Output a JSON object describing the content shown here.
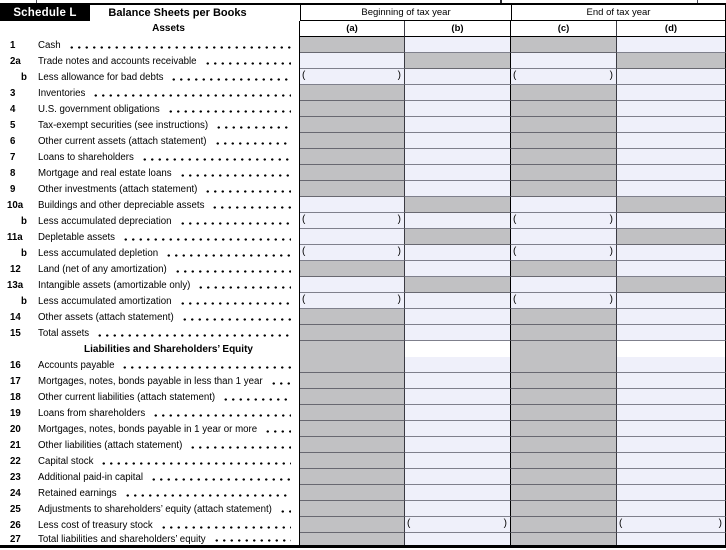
{
  "header": {
    "schedule_label": "Schedule L",
    "title": "Balance Sheets per Books",
    "column_groups": [
      "Beginning of tax year",
      "End of tax year"
    ],
    "column_letters": [
      "(a)",
      "(b)",
      "(c)",
      "(d)"
    ],
    "assets_section_title": "Assets"
  },
  "paren_open": "(",
  "paren_close": ")",
  "colors": {
    "shaded_cell": "#c1c1c3",
    "open_cell": "#eff0fa",
    "header_bg": "#ffffff",
    "schedule_box_bg": "#000000",
    "schedule_box_text": "#ffffff",
    "rule": "#000000"
  },
  "table": {
    "rows": [
      {
        "num": "1",
        "label": "Cash",
        "cells": [
          "shaded",
          "open",
          "shaded",
          "open"
        ]
      },
      {
        "num": "2a",
        "label": "Trade notes and accounts receivable",
        "cells": [
          "open",
          "shaded",
          "open",
          "shaded"
        ]
      },
      {
        "num": "b",
        "label": "Less allowance for bad debts",
        "cells": [
          "paren",
          "open",
          "paren",
          "open"
        ]
      },
      {
        "num": "3",
        "label": "Inventories",
        "cells": [
          "shaded",
          "open",
          "shaded",
          "open"
        ]
      },
      {
        "num": "4",
        "label": "U.S. government obligations",
        "cells": [
          "shaded",
          "open",
          "shaded",
          "open"
        ]
      },
      {
        "num": "5",
        "label": "Tax-exempt securities (see instructions)",
        "cells": [
          "shaded",
          "open",
          "shaded",
          "open"
        ]
      },
      {
        "num": "6",
        "label": "Other current assets (attach statement)",
        "cells": [
          "shaded",
          "open",
          "shaded",
          "open"
        ]
      },
      {
        "num": "7",
        "label": "Loans to shareholders",
        "cells": [
          "shaded",
          "open",
          "shaded",
          "open"
        ]
      },
      {
        "num": "8",
        "label": "Mortgage and real estate loans",
        "cells": [
          "shaded",
          "open",
          "shaded",
          "open"
        ]
      },
      {
        "num": "9",
        "label": "Other investments (attach statement)",
        "cells": [
          "shaded",
          "open",
          "shaded",
          "open"
        ]
      },
      {
        "num": "10a",
        "label": "Buildings and other depreciable assets",
        "cells": [
          "open",
          "shaded",
          "open",
          "shaded"
        ]
      },
      {
        "num": "b",
        "label": "Less accumulated depreciation",
        "cells": [
          "paren",
          "open",
          "paren",
          "open"
        ]
      },
      {
        "num": "11a",
        "label": "Depletable assets",
        "cells": [
          "open",
          "shaded",
          "open",
          "shaded"
        ]
      },
      {
        "num": "b",
        "label": "Less accumulated depletion",
        "cells": [
          "paren",
          "open",
          "paren",
          "open"
        ]
      },
      {
        "num": "12",
        "label": "Land (net of any amortization)",
        "cells": [
          "shaded",
          "open",
          "shaded",
          "open"
        ]
      },
      {
        "num": "13a",
        "label": "Intangible assets (amortizable only)",
        "cells": [
          "open",
          "shaded",
          "open",
          "shaded"
        ]
      },
      {
        "num": "b",
        "label": "Less accumulated amortization",
        "cells": [
          "paren",
          "open",
          "paren",
          "open"
        ]
      },
      {
        "num": "14",
        "label": "Other assets (attach statement)",
        "cells": [
          "shaded",
          "open",
          "shaded",
          "open"
        ]
      },
      {
        "num": "15",
        "label": "Total assets",
        "cells": [
          "shaded",
          "open",
          "shaded",
          "open"
        ]
      },
      {
        "type": "section",
        "label": "Liabilities and Shareholders’ Equity",
        "cells": [
          "shaded",
          "white",
          "shaded",
          "white"
        ],
        "no_bottom": true
      },
      {
        "num": "16",
        "label": "Accounts payable",
        "cells": [
          "shaded",
          "open",
          "shaded",
          "open"
        ]
      },
      {
        "num": "17",
        "label": "Mortgages, notes, bonds payable in less than 1 year",
        "cells": [
          "shaded",
          "open",
          "shaded",
          "open"
        ]
      },
      {
        "num": "18",
        "label": "Other current liabilities (attach statement)",
        "cells": [
          "shaded",
          "open",
          "shaded",
          "open"
        ]
      },
      {
        "num": "19",
        "label": "Loans from shareholders",
        "cells": [
          "shaded",
          "open",
          "shaded",
          "open"
        ]
      },
      {
        "num": "20",
        "label": "Mortgages, notes, bonds payable in 1 year or more",
        "cells": [
          "shaded",
          "open",
          "shaded",
          "open"
        ]
      },
      {
        "num": "21",
        "label": "Other liabilities (attach statement)",
        "cells": [
          "shaded",
          "open",
          "shaded",
          "open"
        ]
      },
      {
        "num": "22",
        "label": "Capital stock",
        "cells": [
          "shaded",
          "open",
          "shaded",
          "open"
        ]
      },
      {
        "num": "23",
        "label": "Additional paid-in capital",
        "cells": [
          "shaded",
          "open",
          "shaded",
          "open"
        ]
      },
      {
        "num": "24",
        "label": "Retained earnings",
        "cells": [
          "shaded",
          "open",
          "shaded",
          "open"
        ]
      },
      {
        "num": "25",
        "label": "Adjustments to shareholders’ equity (attach statement)",
        "cells": [
          "shaded",
          "open",
          "shaded",
          "open"
        ]
      },
      {
        "num": "26",
        "label": "Less cost of treasury stock",
        "cells": [
          "shaded",
          "paren",
          "shaded",
          "paren"
        ]
      },
      {
        "num": "27",
        "label": "Total liabilities and shareholders’ equity",
        "cells": [
          "shaded",
          "open",
          "shaded",
          "open"
        ]
      }
    ]
  }
}
